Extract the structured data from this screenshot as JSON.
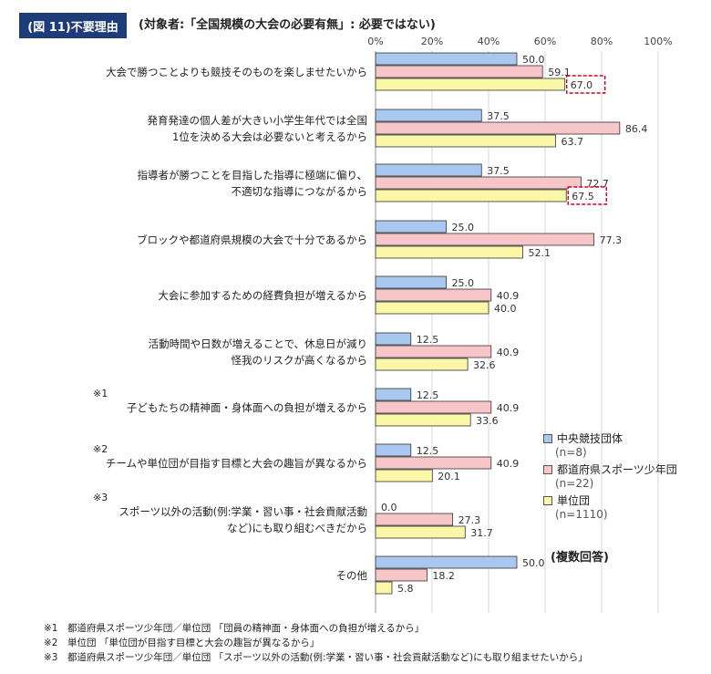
{
  "figure": {
    "badge": "(図 11)不要理由",
    "subtitle": "(対象者:「全国規模の大会の必要有無」: 必要ではない)"
  },
  "legend": {
    "items": [
      {
        "label": "中央競技団体",
        "n": "(n=8)",
        "color": "#a9c8f0"
      },
      {
        "label": "都道府県スポーツ少年団",
        "n": "(n=22)",
        "color": "#f7c6c9"
      },
      {
        "label": "単位団",
        "n": "(n=1110)",
        "color": "#fbf7a8"
      }
    ],
    "note": "(複数回答)"
  },
  "footnotes": [
    "※1　都道府県スポーツ少年団／単位団 「団員の精神面・身体面への負担が増えるから」",
    "※2　単位団 「単位団が目指す目標と大会の趣旨が異なるから」",
    "※3　都道府県スポーツ少年団／単位団 「スポーツ以外の活動(例:学業・習い事・社会貢献活動など)にも取り組ませたいから」"
  ],
  "chart_data": {
    "type": "bar",
    "orientation": "horizontal",
    "x_ticks": [
      "0%",
      "20%",
      "40%",
      "60%",
      "80%",
      "100%"
    ],
    "xlim": [
      0,
      100
    ],
    "grid": true,
    "legend_position": "right",
    "categories": [
      {
        "marker": "",
        "lines": [
          "大会で勝つことよりも競技そのものを楽しませたいから"
        ]
      },
      {
        "marker": "",
        "lines": [
          "発育発達の個人差が大きい小学生年代では全国",
          "1位を決める大会は必要ないと考えるから"
        ]
      },
      {
        "marker": "",
        "lines": [
          "指導者が勝つことを目指した指導に極端に偏り、",
          "不適切な指導につながるから"
        ]
      },
      {
        "marker": "",
        "lines": [
          "ブロックや都道府県規模の大会で十分であるから"
        ]
      },
      {
        "marker": "",
        "lines": [
          "大会に参加するための経費負担が増えるから"
        ]
      },
      {
        "marker": "",
        "lines": [
          "活動時間や日数が増えることで、休息日が減り",
          "怪我のリスクが高くなるから"
        ]
      },
      {
        "marker": "※1",
        "lines": [
          "子どもたちの精神面・身体面への負担が増えるから"
        ]
      },
      {
        "marker": "※2",
        "lines": [
          "チームや単位団が目指す目標と大会の趣旨が異なるから"
        ]
      },
      {
        "marker": "※3",
        "lines": [
          "スポーツ以外の活動(例:学業・習い事・社会貢献活動",
          "など)にも取り組むべきだから"
        ]
      },
      {
        "marker": "",
        "lines": [
          "その他"
        ]
      }
    ],
    "series": [
      {
        "name": "中央競技団体",
        "color": "#a9c8f0",
        "values": [
          50.0,
          37.5,
          37.5,
          25.0,
          25.0,
          12.5,
          12.5,
          12.5,
          0.0,
          50.0
        ],
        "labels": [
          "50.0",
          "37.5",
          "37.5",
          "25.0",
          "25.0",
          "12.5",
          "12.5",
          "12.5",
          "0.0",
          "50.0"
        ]
      },
      {
        "name": "都道府県スポーツ少年団",
        "color": "#f7c6c9",
        "values": [
          59.1,
          86.4,
          72.7,
          77.3,
          40.9,
          40.9,
          40.9,
          40.9,
          27.3,
          18.2
        ],
        "labels": [
          "59.1",
          "86.4",
          "72.7",
          "77.3",
          "40.9",
          "40.9",
          "40.9",
          "40.9",
          "27.3",
          "18.2"
        ]
      },
      {
        "name": "単位団",
        "color": "#fbf7a8",
        "values": [
          67.0,
          63.7,
          67.5,
          52.1,
          40.0,
          32.6,
          33.6,
          20.1,
          31.7,
          5.8
        ],
        "labels": [
          "67.0",
          "63.7",
          "67.5",
          "52.1",
          "40.0",
          "32.6",
          "33.6",
          "20.1",
          "31.7",
          "5.8"
        ]
      }
    ],
    "highlighted": [
      {
        "series": 2,
        "category": 0
      },
      {
        "series": 2,
        "category": 2
      }
    ]
  }
}
